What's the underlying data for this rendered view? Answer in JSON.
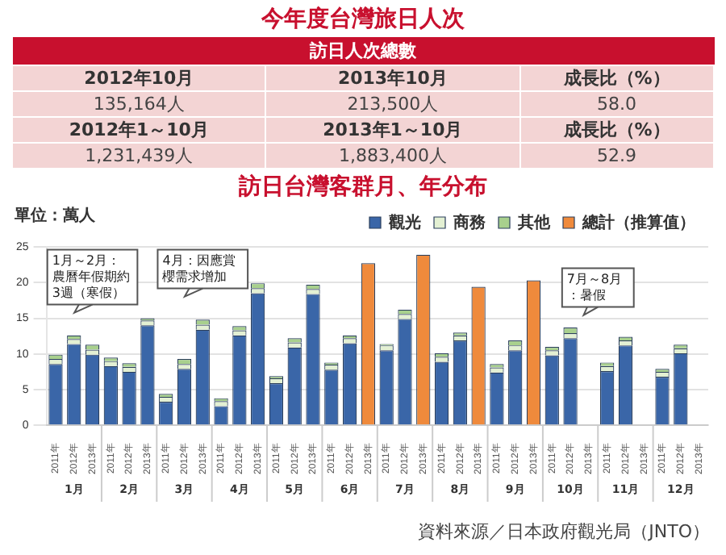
{
  "chart_data": [
    {
      "type": "other",
      "title": "今年度台灣旅日人次",
      "subtitle": "訪日人次總數",
      "annotations": [
        "2012年10月",
        "2013年10月",
        "成長比（%）",
        "135,164人",
        "213,500人",
        "58.0",
        "2012年1～10月",
        "2013年1～10月",
        "成長比（%）",
        "1,231,439人",
        "1,883,400人",
        "52.9"
      ]
    },
    {
      "type": "bar",
      "title": "訪日台灣客群月、年分布",
      "ylabel": "單位：萬人",
      "stacked": true,
      "legend": "top right",
      "grid": "y",
      "categories": [
        "2011年",
        "2012年",
        "2013年",
        "2011年",
        "2012年",
        "2013年",
        "2011年",
        "2012年",
        "2013年",
        "2011年",
        "2012年",
        "2013年",
        "2011年",
        "2012年",
        "2013年",
        "2011年",
        "2012年",
        "2013年",
        "2011年",
        "2012年",
        "2013年",
        "2011年",
        "2012年",
        "2013年",
        "2011年",
        "2012年",
        "2013年",
        "2011年",
        "2012年",
        "2013年",
        "2011年",
        "2012年",
        "2013年",
        "2011年",
        "2012年",
        "2013年"
      ],
      "ylim": [
        0,
        25
      ],
      "yticks": [
        0,
        5,
        10,
        15,
        20,
        25
      ],
      "series": [
        {
          "name": "觀光",
          "color": "#3a66a8",
          "values": [
            8.6,
            11.4,
            9.9,
            8.3,
            7.5,
            14.0,
            3.3,
            7.9,
            13.4,
            2.7,
            12.6,
            18.5,
            5.9,
            10.9,
            18.4,
            7.8,
            11.5,
            null,
            10.5,
            14.9,
            null,
            8.9,
            11.9,
            null,
            7.4,
            10.5,
            null,
            9.8,
            12.2,
            null,
            7.6,
            11.2,
            null,
            6.8,
            10.1,
            null
          ]
        },
        {
          "name": "商務",
          "color": "#e3f0d3",
          "values": [
            0.7,
            0.7,
            0.7,
            0.7,
            0.7,
            0.7,
            0.7,
            0.7,
            0.7,
            0.7,
            0.7,
            0.7,
            0.7,
            0.7,
            0.7,
            0.7,
            0.7,
            null,
            0.7,
            0.7,
            null,
            0.7,
            0.7,
            null,
            0.7,
            0.7,
            null,
            0.7,
            0.7,
            null,
            0.7,
            0.7,
            null,
            0.7,
            0.7,
            null
          ]
        },
        {
          "name": "其他",
          "color": "#a8d08d",
          "values": [
            0.6,
            0.5,
            0.7,
            0.5,
            0.5,
            0.3,
            0.4,
            0.7,
            0.7,
            0.4,
            0.6,
            0.7,
            0.3,
            0.6,
            0.6,
            0.3,
            0.4,
            null,
            0.2,
            0.6,
            null,
            0.5,
            0.4,
            null,
            0.5,
            0.7,
            null,
            0.5,
            0.8,
            null,
            0.5,
            0.5,
            null,
            0.4,
            0.5,
            null
          ]
        },
        {
          "name": "總計（推算值）",
          "color": "#ef8a3c",
          "values": [
            null,
            null,
            null,
            null,
            null,
            null,
            null,
            null,
            null,
            null,
            null,
            null,
            null,
            null,
            null,
            null,
            null,
            22.7,
            null,
            null,
            23.9,
            null,
            null,
            19.4,
            null,
            null,
            20.3,
            null,
            null,
            null,
            null,
            null,
            null,
            null,
            null,
            null
          ]
        }
      ],
      "annotations": [
        "1月～2月：農曆年假期約3週（寒假）",
        "4月：因應賞櫻需求增加",
        "7月～8月：暑假",
        "資料來源／日本政府觀光局（JNTO）",
        "1月",
        "2月",
        "3月",
        "4月",
        "5月",
        "6月",
        "7月",
        "8月",
        "9月",
        "10月",
        "11月",
        "12月"
      ]
    }
  ]
}
